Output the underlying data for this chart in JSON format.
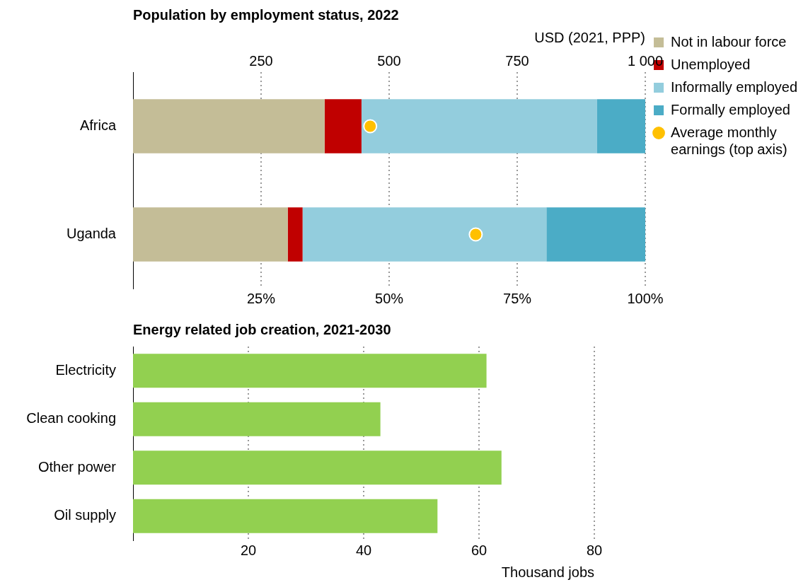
{
  "chart_data": [
    {
      "type": "bar",
      "orientation": "horizontal",
      "stacked": true,
      "title": "Population by employment status, 2022",
      "x2label": "USD (2021, PPP)",
      "categories": [
        "Africa",
        "Uganda"
      ],
      "series": [
        {
          "name": "Not in labour force",
          "color": "#c4bd97",
          "values": [
            37.4,
            30.2
          ]
        },
        {
          "name": "Unemployed",
          "color": "#c00000",
          "values": [
            7.2,
            2.9
          ]
        },
        {
          "name": "Informally employed",
          "color": "#93cddd",
          "values": [
            46,
            47.6
          ]
        },
        {
          "name": "Formally employed",
          "color": "#4bacc6",
          "values": [
            9.4,
            19.3
          ]
        },
        {
          "name": "Average monthly earnings (top axis)",
          "type": "scatter",
          "axis": "x2",
          "color": "#ffc000",
          "values": [
            463,
            669
          ]
        }
      ],
      "xlim": [
        0,
        100
      ],
      "xticks": [
        {
          "value": 25,
          "label": "25%"
        },
        {
          "value": 50,
          "label": "50%"
        },
        {
          "value": 75,
          "label": "75%"
        },
        {
          "value": 100,
          "label": "100%"
        }
      ],
      "x2lim": [
        0,
        1000
      ],
      "x2ticks": [
        250,
        500,
        750,
        {
          "value": 1000,
          "label": "1 000"
        }
      ],
      "grid": "x",
      "legend": "right",
      "marker": "circle"
    },
    {
      "type": "bar",
      "orientation": "horizontal",
      "title": "Energy related job creation, 2021-2030",
      "xlabel": "Thousand jobs",
      "categories": [
        "Electricity",
        "Clean cooking",
        "Other power",
        "Oil supply"
      ],
      "values": [
        61.3,
        42.9,
        63.9,
        52.8
      ],
      "color": "#92d050",
      "xlim": [
        0,
        80
      ],
      "xticks": [
        20,
        40,
        60,
        80
      ],
      "grid": "x"
    }
  ]
}
